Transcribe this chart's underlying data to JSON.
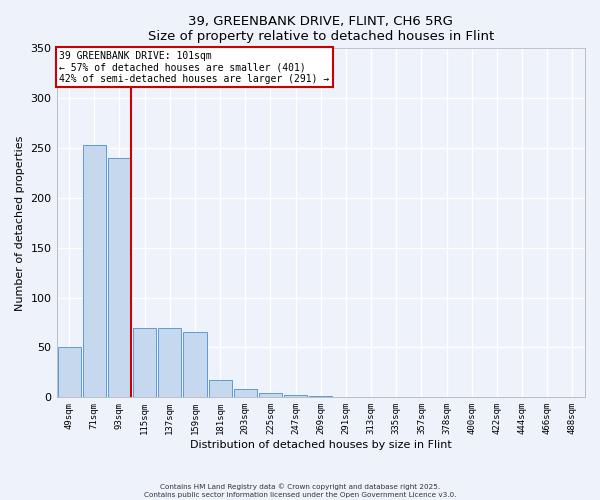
{
  "title": "39, GREENBANK DRIVE, FLINT, CH6 5RG",
  "subtitle": "Size of property relative to detached houses in Flint",
  "xlabel": "Distribution of detached houses by size in Flint",
  "ylabel": "Number of detached properties",
  "bar_labels": [
    "49sqm",
    "71sqm",
    "93sqm",
    "115sqm",
    "137sqm",
    "159sqm",
    "181sqm",
    "203sqm",
    "225sqm",
    "247sqm",
    "269sqm",
    "291sqm",
    "313sqm",
    "335sqm",
    "357sqm",
    "378sqm",
    "400sqm",
    "422sqm",
    "444sqm",
    "466sqm",
    "488sqm"
  ],
  "bar_values": [
    50,
    253,
    240,
    70,
    70,
    66,
    17,
    8,
    4,
    2,
    1,
    0,
    0,
    0,
    0,
    0,
    0,
    0,
    0,
    0,
    0
  ],
  "bar_color": "#c5d8ed",
  "bar_edge_color": "#5b9bd5",
  "vline_x_index": 2,
  "vline_color": "#cc0000",
  "annotation_line1": "39 GREENBANK DRIVE: 101sqm",
  "annotation_line2": "← 57% of detached houses are smaller (401)",
  "annotation_line3": "42% of semi-detached houses are larger (291) →",
  "annotation_box_color": "#cc0000",
  "ylim": [
    0,
    350
  ],
  "yticks": [
    0,
    50,
    100,
    150,
    200,
    250,
    300,
    350
  ],
  "background_color": "#eef2fb",
  "grid_color": "#ffffff",
  "footer_line1": "Contains HM Land Registry data © Crown copyright and database right 2025.",
  "footer_line2": "Contains public sector information licensed under the Open Government Licence v3.0."
}
